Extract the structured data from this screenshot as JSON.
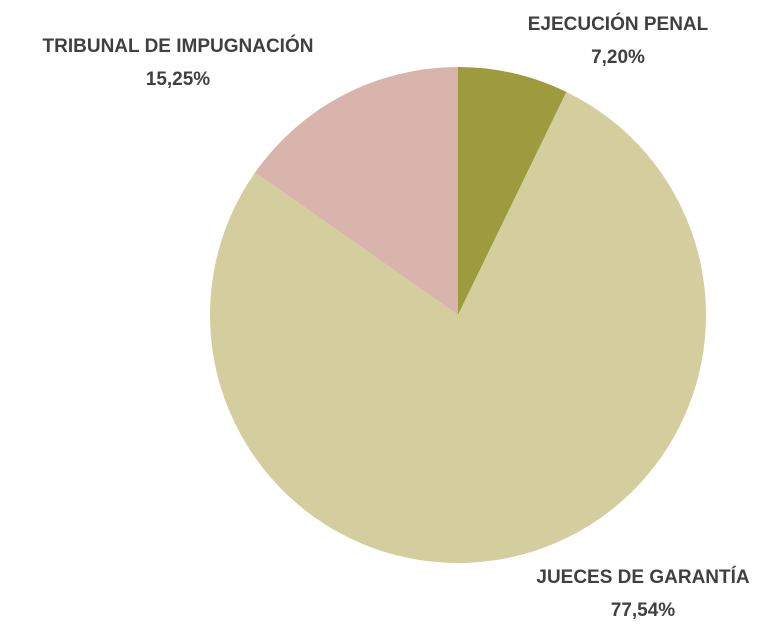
{
  "chart_data": {
    "type": "pie",
    "categories": [
      "EJECUCIÓN PENAL",
      "JUECES DE GARANTÍA",
      "TRIBUNAL DE IMPUGNACIÓN"
    ],
    "values": [
      7.2,
      77.54,
      15.25
    ],
    "value_labels": [
      "7,20%",
      "77,54%",
      "15,25%"
    ],
    "colors": [
      "#9e9a3e",
      "#d4cd9d",
      "#d9b4ac"
    ]
  }
}
